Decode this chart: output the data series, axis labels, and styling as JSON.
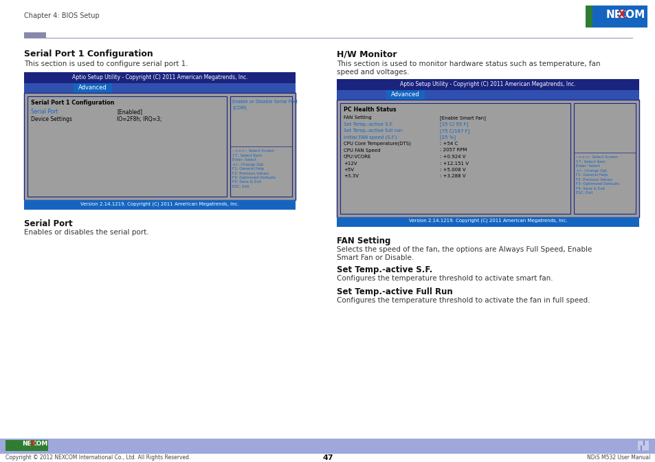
{
  "bg_color": "#ffffff",
  "header_text": "Chapter 4: BIOS Setup",
  "nexcom_logo_bg": "#1565c0",
  "nexcom_logo_green": "#2e7d32",
  "nexcom_logo_red": "#c62828",
  "left_title": "Serial Port 1 Configuration",
  "left_subtitle": "This section is used to configure serial port 1.",
  "bios_header_bg": "#1a237e",
  "bios_header_text": "Aptio Setup Utility - Copyright (C) 2011 American Megatrends, Inc.",
  "bios_tab_bg": "#1565c0",
  "bios_tab_text": "Advanced",
  "bios_body_bg": "#9e9e9e",
  "bios_border_color": "#1a237e",
  "bios_blue_text": "#1565c0",
  "bios_footer_text": "Version 2.14.1219. Copyright (C) 2011 American Megatrends, Inc.",
  "left_bios_title": "Serial Port 1 Configuration",
  "left_bios_items": [
    [
      "Serial Port",
      "[Enabled]",
      "blue"
    ],
    [
      "Device Settings",
      "IO=2F8h; IRQ=3;",
      "black"
    ]
  ],
  "left_hint_title": "Enable or Disable Serial Port\n(COM)",
  "left_hints": [
    "-->+<-: Select Screen",
    "1↑: Select Item",
    "Enter: Select",
    "+/-: Change Opt.",
    "F1: General Help",
    "F2: Previous Values",
    "F3: Optimized Defaults",
    "F4: Save & Exit",
    "ESC: Exit"
  ],
  "left_s2_title": "Serial Port",
  "left_s2_text": "Enables or disables the serial port.",
  "right_title": "H/W Monitor",
  "right_subtitle_1": "This section is used to monitor hardware status such as temperature, fan",
  "right_subtitle_2": "speed and voltages.",
  "right_bios_title": "PC Health Status",
  "right_bios_items": [
    [
      "FAN Setting",
      "[Enable Smart Fan]",
      "black",
      "black"
    ],
    [
      "Set Temp.-active S.F.",
      "[35 C/ 95 F]",
      "blue",
      "blue"
    ],
    [
      "Set Temp.-active full run",
      "[75 C/167 F]",
      "blue",
      "blue"
    ],
    [
      "Initial FAN speed (S.F.)",
      "[25 %]",
      "blue",
      "blue"
    ],
    [
      "CPU Core Temperature(DTS)",
      ": +54 C",
      "black",
      "black"
    ],
    [
      "CPU FAN Speed",
      ": 2057 RPM",
      "black",
      "black"
    ],
    [
      "CPU:VCORE",
      ": +0.924 V",
      "black",
      "black"
    ],
    [
      "+12V",
      ": +12.151 V",
      "black",
      "black"
    ],
    [
      "+5V",
      ": +5.008 V",
      "black",
      "black"
    ],
    [
      "+3.3V",
      ": +3.288 V",
      "black",
      "black"
    ]
  ],
  "right_hints": [
    "-->+<-: Select Screen",
    "1↑: Select Item",
    "Enter: Select",
    "+/-: Change Opt.",
    "F1: General Help",
    "F2: Previous Values",
    "F3: Optimized Defaults",
    "F4: Save & Exit",
    "ESC: Exit"
  ],
  "right_s2_title": "FAN Setting",
  "right_s2_text_1": "Selects the speed of the fan, the options are Always Full Speed, Enable",
  "right_s2_text_2": "Smart Fan or Disable.",
  "right_s3_title": "Set Temp.-active S.F.",
  "right_s3_text": "Configures the temperature threshold to activate smart fan.",
  "right_s4_title": "Set Temp.-active Full Run",
  "right_s4_text": "Configures the temperature threshold to activate the fan in full speed.",
  "footer_bar_color": "#9fa8da",
  "footer_text_left": "Copyright © 2012 NEXCOM International Co., Ltd. All Rights Reserved.",
  "footer_page": "47",
  "footer_text_right": "NDiS M532 User Manual"
}
